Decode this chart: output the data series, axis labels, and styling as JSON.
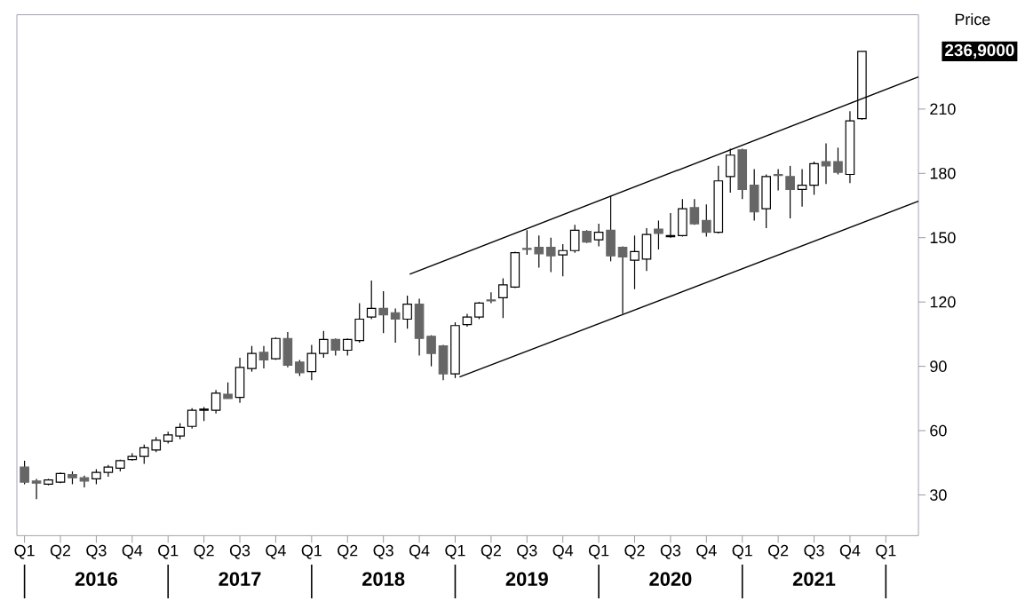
{
  "chart_data": {
    "type": "candlestick",
    "ylabel": "Price",
    "x": [
      "2016-01",
      "2016-02",
      "2016-03",
      "2016-04",
      "2016-05",
      "2016-06",
      "2016-07",
      "2016-08",
      "2016-09",
      "2016-10",
      "2016-11",
      "2016-12",
      "2017-01",
      "2017-02",
      "2017-03",
      "2017-04",
      "2017-05",
      "2017-06",
      "2017-07",
      "2017-08",
      "2017-09",
      "2017-10",
      "2017-11",
      "2017-12",
      "2018-01",
      "2018-02",
      "2018-03",
      "2018-04",
      "2018-05",
      "2018-06",
      "2018-07",
      "2018-08",
      "2018-09",
      "2018-10",
      "2018-11",
      "2018-12",
      "2019-01",
      "2019-02",
      "2019-03",
      "2019-04",
      "2019-05",
      "2019-06",
      "2019-07",
      "2019-08",
      "2019-09",
      "2019-10",
      "2019-11",
      "2019-12",
      "2020-01",
      "2020-02",
      "2020-03",
      "2020-04",
      "2020-05",
      "2020-06",
      "2020-07",
      "2020-08",
      "2020-09",
      "2020-10",
      "2020-11",
      "2020-12",
      "2021-01",
      "2021-02",
      "2021-03",
      "2021-04",
      "2021-05",
      "2021-06",
      "2021-07",
      "2021-08",
      "2021-09",
      "2021-10",
      "2021-11"
    ],
    "ohlc": [
      [
        43,
        46,
        35,
        36
      ],
      [
        36.5,
        37.5,
        28,
        35.5
      ],
      [
        35,
        37.5,
        34.5,
        37
      ],
      [
        36,
        40.5,
        35.5,
        40
      ],
      [
        39.5,
        41,
        35,
        38
      ],
      [
        38,
        39,
        33.5,
        36.5
      ],
      [
        37.5,
        42,
        35,
        40.5
      ],
      [
        40.5,
        44,
        38.5,
        43
      ],
      [
        42.5,
        46.5,
        41,
        46
      ],
      [
        46.5,
        49.5,
        46,
        48
      ],
      [
        48,
        53.5,
        44.5,
        52
      ],
      [
        51,
        57,
        50,
        55.5
      ],
      [
        55,
        59.5,
        54,
        58
      ],
      [
        57.5,
        63.5,
        56,
        61.5
      ],
      [
        62,
        70.5,
        61,
        69.5
      ],
      [
        69.5,
        71,
        64.5,
        70
      ],
      [
        69.5,
        79,
        68,
        77.5
      ],
      [
        77,
        82.5,
        75,
        75
      ],
      [
        75.5,
        94,
        73,
        89.5
      ],
      [
        89,
        99.5,
        87.5,
        96
      ],
      [
        96.5,
        99.5,
        89,
        93
      ],
      [
        93.5,
        103.5,
        93,
        103
      ],
      [
        103,
        106,
        89.5,
        90.5
      ],
      [
        92,
        93,
        85.5,
        87
      ],
      [
        87.5,
        100,
        83.5,
        96
      ],
      [
        96,
        106.5,
        94,
        102.5
      ],
      [
        102.5,
        103,
        95,
        97.5
      ],
      [
        97.5,
        103,
        95,
        102.5
      ],
      [
        102,
        119.5,
        101,
        112
      ],
      [
        113,
        130,
        112,
        117
      ],
      [
        117,
        125,
        105.5,
        114
      ],
      [
        115,
        117,
        101,
        112
      ],
      [
        112,
        123,
        107.5,
        119
      ],
      [
        119,
        121.5,
        95,
        103
      ],
      [
        104,
        104.5,
        90,
        96
      ],
      [
        99.5,
        100,
        83.5,
        86.5
      ],
      [
        86.5,
        110.5,
        84.5,
        109
      ],
      [
        109.5,
        114.5,
        108.5,
        113
      ],
      [
        113,
        120,
        112,
        119.5
      ],
      [
        121,
        124.5,
        119.5,
        120.5
      ],
      [
        122,
        131,
        112.5,
        128
      ],
      [
        127,
        143.5,
        126.5,
        143
      ],
      [
        145,
        153.5,
        142,
        144.5
      ],
      [
        145.5,
        151,
        136,
        142.5
      ],
      [
        145.5,
        150,
        134,
        141.5
      ],
      [
        142,
        147,
        132,
        144
      ],
      [
        144,
        156,
        143,
        153.5
      ],
      [
        153,
        153.5,
        147.5,
        148
      ],
      [
        149,
        156.5,
        146,
        152.5
      ],
      [
        153.5,
        169.5,
        139,
        141.5
      ],
      [
        145.5,
        146,
        114.5,
        141
      ],
      [
        139.5,
        151,
        126,
        143.5
      ],
      [
        140,
        154.5,
        134.5,
        151.5
      ],
      [
        154,
        158,
        144.5,
        152
      ],
      [
        150.5,
        161.5,
        150,
        151
      ],
      [
        151,
        168,
        150.5,
        163.5
      ],
      [
        164,
        168,
        156,
        156.5
      ],
      [
        158,
        165.5,
        150.5,
        152.5
      ],
      [
        152.5,
        183.5,
        152,
        176.5
      ],
      [
        178.5,
        191.5,
        171,
        188.5
      ],
      [
        191,
        191.5,
        168,
        172.5
      ],
      [
        174.5,
        182,
        158,
        162
      ],
      [
        163.5,
        179.5,
        154.5,
        178.5
      ],
      [
        179.5,
        182,
        172,
        179
      ],
      [
        178.5,
        183.5,
        159,
        172.5
      ],
      [
        172.5,
        182,
        164.5,
        174.5
      ],
      [
        174.5,
        185.5,
        170,
        184.5
      ],
      [
        185.5,
        194,
        175,
        183.5
      ],
      [
        185.5,
        192,
        179.5,
        180.5
      ],
      [
        179.5,
        209,
        175.5,
        204.5
      ],
      [
        205.5,
        237,
        205,
        236.9
      ]
    ],
    "series": [
      {
        "type": "line",
        "x": [
          "2018-09-07",
          "2022-03-23"
        ],
        "values": [
          133,
          225
        ],
        "color": "#000000"
      },
      {
        "type": "line",
        "x": [
          "2019-01-12",
          "2022-03-23"
        ],
        "values": [
          85,
          167
        ],
        "color": "#000000"
      }
    ],
    "annotations": [
      "236,9000"
    ],
    "xlim": [
      "2015-12-12",
      "2022-03-23"
    ],
    "xticks": [
      {
        "value": "2016-01",
        "label": "Q1"
      },
      {
        "value": "2016-04",
        "label": "Q2"
      },
      {
        "value": "2016-07",
        "label": "Q3"
      },
      {
        "value": "2016-10",
        "label": "Q4"
      },
      {
        "value": "2017-01",
        "label": "Q1"
      },
      {
        "value": "2017-04",
        "label": "Q2"
      },
      {
        "value": "2017-07",
        "label": "Q3"
      },
      {
        "value": "2017-10",
        "label": "Q4"
      },
      {
        "value": "2018-01",
        "label": "Q1"
      },
      {
        "value": "2018-04",
        "label": "Q2"
      },
      {
        "value": "2018-07",
        "label": "Q3"
      },
      {
        "value": "2018-10",
        "label": "Q4"
      },
      {
        "value": "2019-01",
        "label": "Q1"
      },
      {
        "value": "2019-04",
        "label": "Q2"
      },
      {
        "value": "2019-07",
        "label": "Q3"
      },
      {
        "value": "2019-10",
        "label": "Q4"
      },
      {
        "value": "2020-01",
        "label": "Q1"
      },
      {
        "value": "2020-04",
        "label": "Q2"
      },
      {
        "value": "2020-07",
        "label": "Q3"
      },
      {
        "value": "2020-10",
        "label": "Q4"
      },
      {
        "value": "2021-01",
        "label": "Q1"
      },
      {
        "value": "2021-04",
        "label": "Q2"
      },
      {
        "value": "2021-07",
        "label": "Q3"
      },
      {
        "value": "2021-10",
        "label": "Q4"
      },
      {
        "value": "2022-01",
        "label": "Q1"
      }
    ],
    "x2lim": [
      "2015-12-12",
      "2022-03-23"
    ],
    "x2ticks": [
      {
        "value": "2016-01",
        "label": null
      },
      {
        "value": "2016-07",
        "label": "2016"
      },
      {
        "value": "2017-01",
        "label": null
      },
      {
        "value": "2017-07",
        "label": "2017"
      },
      {
        "value": "2018-01",
        "label": null
      },
      {
        "value": "2018-07",
        "label": "2018"
      },
      {
        "value": "2019-01",
        "label": null
      },
      {
        "value": "2019-07",
        "label": "2019"
      },
      {
        "value": "2020-01",
        "label": null
      },
      {
        "value": "2020-07",
        "label": "2020"
      },
      {
        "value": "2021-01",
        "label": null
      },
      {
        "value": "2021-07",
        "label": "2021"
      },
      {
        "value": "2022-01",
        "label": null
      }
    ],
    "ylim": [
      11,
      254
    ],
    "yticks": [
      30,
      60,
      90,
      120,
      150,
      180,
      210
    ]
  }
}
